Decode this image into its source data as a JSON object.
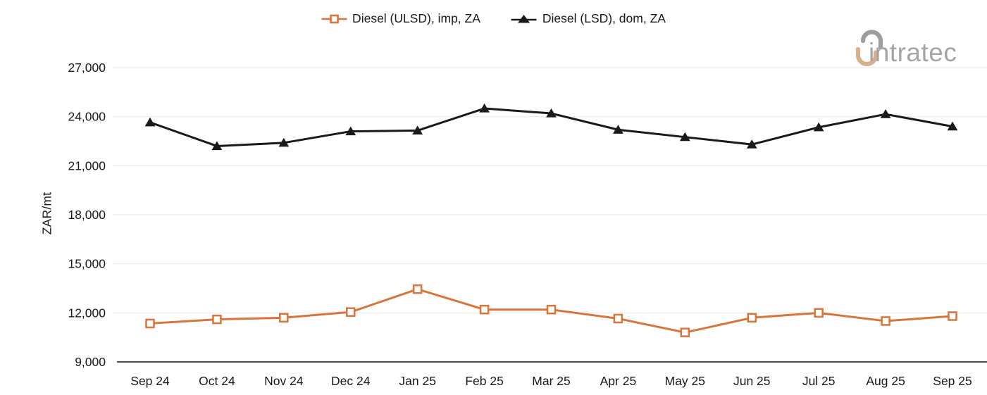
{
  "header": {
    "legend": [
      {
        "label": "Diesel (ULSD), imp, ZA",
        "marker": "open-square",
        "color": "#D9753B"
      },
      {
        "label": "Diesel (LSD), dom, ZA",
        "marker": "filled-triangle",
        "color": "#1A1A1A"
      }
    ],
    "logo_text": "intratec"
  },
  "chart_data": {
    "type": "line",
    "title": "",
    "xlabel": "",
    "ylabel": "ZAR/mt",
    "ylim": [
      9000,
      27000
    ],
    "ytick_step": 3000,
    "yticks": [
      {
        "value": 9000,
        "label": "9,000"
      },
      {
        "value": 12000,
        "label": "12,000"
      },
      {
        "value": 15000,
        "label": "15,000"
      },
      {
        "value": 18000,
        "label": "18,000"
      },
      {
        "value": 21000,
        "label": "21,000"
      },
      {
        "value": 24000,
        "label": "24,000"
      },
      {
        "value": 27000,
        "label": "27,000"
      }
    ],
    "categories": [
      "Sep 24",
      "Oct 24",
      "Nov 24",
      "Dec 24",
      "Jan 25",
      "Feb 25",
      "Mar 25",
      "Apr 25",
      "May 25",
      "Jun 25",
      "Jul 25",
      "Aug 25",
      "Sep 25"
    ],
    "series": [
      {
        "name": "Diesel (ULSD), imp, ZA",
        "color": "#D9753B",
        "marker": "open-square",
        "values": [
          11350,
          11600,
          11700,
          12050,
          13450,
          12200,
          12200,
          11650,
          10800,
          11700,
          12000,
          11500,
          11800
        ]
      },
      {
        "name": "Diesel (LSD), dom, ZA",
        "color": "#1A1A1A",
        "marker": "filled-triangle",
        "values": [
          23650,
          22200,
          22400,
          23100,
          23150,
          24500,
          24200,
          23200,
          22750,
          22300,
          23350,
          24150,
          23400
        ]
      }
    ],
    "grid": "horizontal",
    "legend_position": "top-center"
  },
  "colors": {
    "series_orange": "#D9753B",
    "series_black": "#1A1A1A",
    "gridline": "#EFEFEF",
    "axis_line": "#4D4D4D",
    "text": "#1A1A1A",
    "logo_gray": "#A5A5A5",
    "logo_mark_gray": "#9D9D9D",
    "logo_mark_tan": "#D8B18C",
    "background": "#FFFFFF"
  }
}
